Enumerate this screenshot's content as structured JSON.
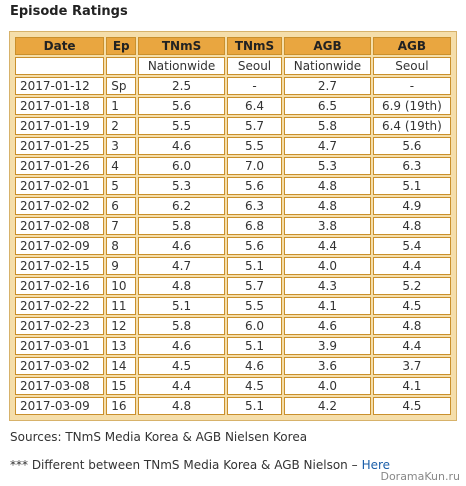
{
  "title": "Episode Ratings",
  "table": {
    "header": [
      [
        "Date",
        "Ep",
        "TNmS",
        "TNmS",
        "AGB",
        "AGB"
      ],
      [
        "Nationwide",
        "Seoul",
        "Nationwide",
        "Seoul"
      ]
    ],
    "rows": [
      [
        "2017-01-12",
        "Sp",
        "2.5",
        "-",
        "2.7",
        "-"
      ],
      [
        "2017-01-18",
        "1",
        "5.6",
        "6.4",
        "6.5",
        "6.9 (19th)"
      ],
      [
        "2017-01-19",
        "2",
        "5.5",
        "5.7",
        "5.8",
        "6.4 (19th)"
      ],
      [
        "2017-01-25",
        "3",
        "4.6",
        "5.5",
        "4.7",
        "5.6"
      ],
      [
        "2017-01-26",
        "4",
        "6.0",
        "7.0",
        "5.3",
        "6.3"
      ],
      [
        "2017-02-01",
        "5",
        "5.3",
        "5.6",
        "4.8",
        "5.1"
      ],
      [
        "2017-02-02",
        "6",
        "6.2",
        "6.3",
        "4.8",
        "4.9"
      ],
      [
        "2017-02-08",
        "7",
        "5.8",
        "6.8",
        "3.8",
        "4.8"
      ],
      [
        "2017-02-09",
        "8",
        "4.6",
        "5.6",
        "4.4",
        "5.4"
      ],
      [
        "2017-02-15",
        "9",
        "4.7",
        "5.1",
        "4.0",
        "4.4"
      ],
      [
        "2017-02-16",
        "10",
        "4.8",
        "5.7",
        "4.3",
        "5.2"
      ],
      [
        "2017-02-22",
        "11",
        "5.1",
        "5.5",
        "4.1",
        "4.5"
      ],
      [
        "2017-02-23",
        "12",
        "5.8",
        "6.0",
        "4.6",
        "4.8"
      ],
      [
        "2017-03-01",
        "13",
        "4.6",
        "5.1",
        "3.9",
        "4.4"
      ],
      [
        "2017-03-02",
        "14",
        "4.5",
        "4.6",
        "3.6",
        "3.7"
      ],
      [
        "2017-03-08",
        "15",
        "4.4",
        "4.5",
        "4.0",
        "4.1"
      ],
      [
        "2017-03-09",
        "16",
        "4.8",
        "5.1",
        "4.2",
        "4.5"
      ]
    ]
  },
  "sources": "Sources: TNmS Media Korea & AGB Nielsen Korea",
  "note": {
    "text": "*** Different between TNmS Media Korea & AGB Nielson –",
    "link": "Here"
  },
  "watermark": "DoramaKun.ru"
}
